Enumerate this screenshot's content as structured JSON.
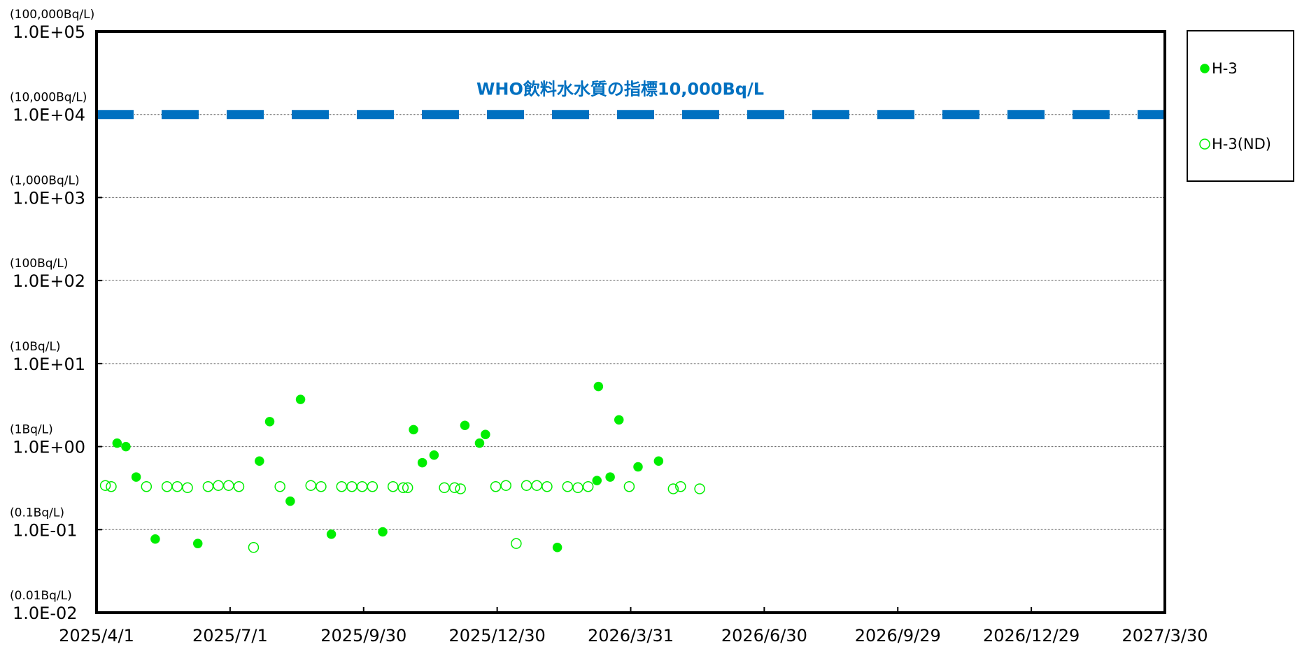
{
  "chart_data": {
    "type": "scatter",
    "xlim": [
      "2025/4/1",
      "2027/3/30"
    ],
    "xticks": [
      "2025/4/1",
      "2025/7/1",
      "2025/9/30",
      "2025/12/30",
      "2026/3/31",
      "2026/6/30",
      "2026/9/29",
      "2026/12/29",
      "2027/3/30"
    ],
    "ylim": [
      0.01,
      100000
    ],
    "log_y": true,
    "grid": true,
    "yticks": [
      {
        "value": 0.01,
        "label": "1.0E-02"
      },
      {
        "value": 0.1,
        "label": "1.0E-01"
      },
      {
        "value": 1,
        "label": "1.0E+00"
      },
      {
        "value": 10,
        "label": "1.0E+01"
      },
      {
        "value": 100,
        "label": "1.0E+02"
      },
      {
        "value": 1000,
        "label": "1.0E+03"
      },
      {
        "value": 10000,
        "label": "1.0E+04"
      },
      {
        "value": 100000,
        "label": "1.0E+05"
      }
    ],
    "ytick_sublabels": [
      "(0.01Bq/L)",
      "(0.1Bq/L)",
      "(1Bq/L)",
      "(10Bq/L)",
      "(100Bq/L)",
      "(1,000Bq/L)",
      "(10,000Bq/L)",
      "(100,000Bq/L)"
    ],
    "reference_line": {
      "value": 10000,
      "label": "WHO飲料水水質の指標10,000Bq/L",
      "color": "#0070c0"
    },
    "legend": "right",
    "series": [
      {
        "name": "H-3",
        "color": "#00ee00",
        "marker": "filled",
        "x": [
          "2025/4/15",
          "2025/4/21",
          "2025/4/28",
          "2025/5/11",
          "2025/6/9",
          "2025/7/21",
          "2025/7/28",
          "2025/8/11",
          "2025/8/18",
          "2025/9/8",
          "2025/10/13",
          "2025/11/3",
          "2025/11/9",
          "2025/11/17",
          "2025/12/8",
          "2025/12/18",
          "2025/12/22",
          "2026/2/9",
          "2026/3/8",
          "2026/3/9",
          "2026/3/17",
          "2026/3/23",
          "2026/4/5",
          "2026/4/19"
        ],
        "values": [
          1.1,
          1.0,
          0.43,
          0.077,
          0.068,
          0.67,
          2.0,
          0.22,
          3.7,
          0.088,
          0.094,
          1.6,
          0.64,
          0.79,
          1.8,
          1.1,
          1.4,
          0.061,
          0.39,
          5.3,
          0.43,
          2.1,
          0.57,
          0.67
        ]
      },
      {
        "name": "H-3(ND)",
        "color": "#00ee00",
        "marker": "open",
        "x": [
          "2025/4/7",
          "2025/4/11",
          "2025/5/5",
          "2025/5/19",
          "2025/5/26",
          "2025/6/2",
          "2025/6/16",
          "2025/6/23",
          "2025/6/30",
          "2025/7/7",
          "2025/7/17",
          "2025/8/4",
          "2025/8/25",
          "2025/9/1",
          "2025/9/15",
          "2025/9/22",
          "2025/9/29",
          "2025/10/6",
          "2025/10/20",
          "2025/10/27",
          "2025/10/30",
          "2025/11/24",
          "2025/12/1",
          "2025/12/5",
          "2025/12/29",
          "2026/1/5",
          "2026/1/12",
          "2026/1/19",
          "2026/1/26",
          "2026/2/2",
          "2026/2/16",
          "2026/2/23",
          "2026/3/2",
          "2026/3/30",
          "2026/4/29",
          "2026/5/4",
          "2026/5/17"
        ],
        "values": [
          0.34,
          0.33,
          0.33,
          0.33,
          0.33,
          0.32,
          0.33,
          0.34,
          0.34,
          0.33,
          0.061,
          0.33,
          0.34,
          0.33,
          0.33,
          0.33,
          0.33,
          0.33,
          0.33,
          0.32,
          0.32,
          0.32,
          0.32,
          0.31,
          0.33,
          0.34,
          0.068,
          0.34,
          0.34,
          0.33,
          0.33,
          0.32,
          0.33,
          0.33,
          0.31,
          0.33,
          0.31
        ]
      }
    ]
  }
}
